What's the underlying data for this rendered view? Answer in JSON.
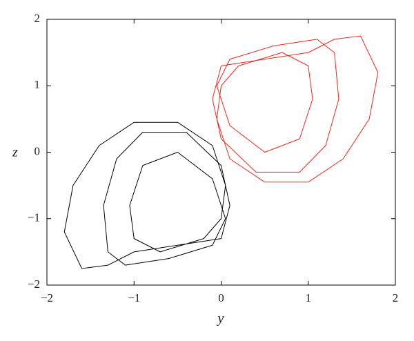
{
  "chart_data": {
    "type": "line",
    "xlabel": "y",
    "ylabel": "z",
    "xlim": [
      -2,
      2
    ],
    "ylim": [
      -2,
      2
    ],
    "xticks": [
      {
        "value": -2,
        "label": "−2"
      },
      {
        "value": -1,
        "label": "−1"
      },
      0,
      1,
      2
    ],
    "yticks": [
      {
        "value": -2,
        "label": "−2"
      },
      {
        "value": -1,
        "label": "−1"
      },
      0,
      1,
      2
    ],
    "grid": false,
    "series": [
      {
        "color": "#000000",
        "x": [
          0,
          0.05,
          -0.1,
          -0.5,
          -1.0,
          -1.4,
          -1.7,
          -1.8,
          -1.6,
          -1.3,
          -1.0,
          -0.5,
          0,
          0.1,
          0,
          -0.4,
          -0.9,
          -1.2,
          -1.35,
          -1.3,
          -1.1,
          -0.6,
          -0.1,
          0.05,
          -0.1,
          -0.5,
          -0.9,
          -1.05,
          -1.0,
          -0.7,
          -0.2,
          0
        ],
        "values": [
          -1.0,
          -0.5,
          0.1,
          0.45,
          0.45,
          0.1,
          -0.5,
          -1.2,
          -1.75,
          -1.7,
          -1.5,
          -1.4,
          -1.3,
          -0.8,
          -0.2,
          0.3,
          0.3,
          -0.1,
          -0.8,
          -1.5,
          -1.7,
          -1.6,
          -1.4,
          -1.0,
          -0.4,
          0.0,
          -0.2,
          -0.8,
          -1.3,
          -1.5,
          -1.3,
          -1.0
        ]
      },
      {
        "color": "#e8281e",
        "x": [
          0,
          -0.05,
          0.1,
          0.5,
          1.0,
          1.4,
          1.7,
          1.8,
          1.6,
          1.3,
          1.0,
          0.5,
          0,
          -0.1,
          0,
          0.4,
          0.9,
          1.2,
          1.35,
          1.3,
          1.1,
          0.6,
          0.1,
          -0.05,
          0.1,
          0.5,
          0.9,
          1.05,
          1.0,
          0.7,
          0.2,
          0
        ],
        "values": [
          1.0,
          0.5,
          -0.1,
          -0.45,
          -0.45,
          -0.1,
          0.5,
          1.2,
          1.75,
          1.7,
          1.5,
          1.4,
          1.3,
          0.8,
          0.2,
          -0.3,
          -0.3,
          0.1,
          0.8,
          1.5,
          1.7,
          1.6,
          1.4,
          1.0,
          0.4,
          0.0,
          0.2,
          0.8,
          1.3,
          1.5,
          1.3,
          1.0
        ]
      }
    ]
  }
}
